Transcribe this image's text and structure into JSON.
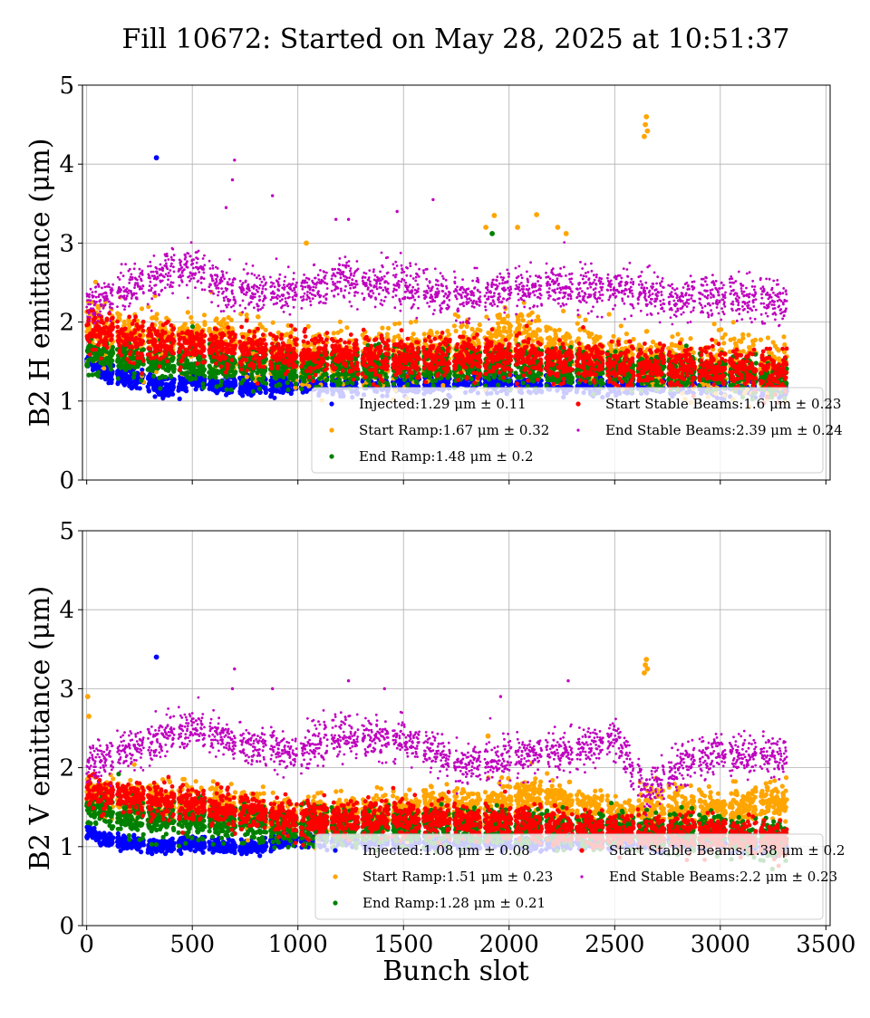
{
  "figure_title": "Fill 10672: Started on May 28, 2025 at 10:51:37",
  "xlabel": "Bunch slot",
  "chart_data": [
    {
      "type": "scatter",
      "title": "",
      "ylabel": "B2 H emittance (μm)",
      "xlim": [
        -20,
        3520
      ],
      "ylim": [
        0,
        5
      ],
      "xticks": [
        0,
        500,
        1000,
        1500,
        2000,
        2500,
        3000,
        3500
      ],
      "yticks": [
        0,
        1,
        2,
        3,
        4,
        5
      ],
      "grid": true,
      "legend_position": "lower-right",
      "series": [
        {
          "name": "Injected",
          "legend": "Injected:1.29 μm ± 0.11",
          "color": "#0000ff",
          "mean": 1.29,
          "std": 0.11,
          "marker_size": 2.6,
          "trend": [
            [
              0,
              1.55
            ],
            [
              80,
              1.35
            ],
            [
              300,
              1.25
            ],
            [
              360,
              1.15
            ],
            [
              500,
              1.28
            ],
            [
              700,
              1.18
            ],
            [
              1000,
              1.22
            ],
            [
              1500,
              1.2
            ],
            [
              2000,
              1.22
            ],
            [
              2500,
              1.2
            ],
            [
              3000,
              1.2
            ],
            [
              3230,
              1.15
            ]
          ],
          "outliers": [
            [
              330,
              4.08
            ]
          ]
        },
        {
          "name": "Start Ramp",
          "legend": "Start Ramp:1.67 μm ± 0.32",
          "color": "#ffa500",
          "mean": 1.67,
          "std": 0.32,
          "marker_size": 2.6,
          "trend": [
            [
              0,
              1.9
            ],
            [
              300,
              1.75
            ],
            [
              600,
              1.75
            ],
            [
              1000,
              1.55
            ],
            [
              1500,
              1.55
            ],
            [
              1900,
              1.7
            ],
            [
              2050,
              1.85
            ],
            [
              2200,
              1.7
            ],
            [
              2500,
              1.5
            ],
            [
              3000,
              1.45
            ],
            [
              3230,
              1.4
            ]
          ],
          "outliers": [
            [
              1040,
              3.0
            ],
            [
              1890,
              3.2
            ],
            [
              1930,
              3.35
            ],
            [
              2040,
              3.2
            ],
            [
              2130,
              3.36
            ],
            [
              2230,
              3.2
            ],
            [
              2270,
              3.12
            ],
            [
              2640,
              4.35
            ],
            [
              2645,
              4.5
            ],
            [
              2650,
              4.6
            ],
            [
              2655,
              4.42
            ]
          ]
        },
        {
          "name": "End Ramp",
          "legend": "End Ramp:1.48 μm ± 0.2",
          "color": "#008000",
          "mean": 1.48,
          "std": 0.2,
          "marker_size": 2.6,
          "trend": [
            [
              0,
              1.6
            ],
            [
              300,
              1.5
            ],
            [
              1000,
              1.4
            ],
            [
              1500,
              1.45
            ],
            [
              2000,
              1.45
            ],
            [
              2500,
              1.4
            ],
            [
              3000,
              1.35
            ],
            [
              3230,
              1.25
            ]
          ],
          "outliers": [
            [
              1920,
              3.12
            ]
          ]
        },
        {
          "name": "Start Stable Beams",
          "legend": "Start Stable Beams:1.6 μm ± 0.23",
          "color": "#ff0000",
          "mean": 1.6,
          "std": 0.23,
          "marker_size": 2.4,
          "trend": [
            [
              0,
              1.9
            ],
            [
              300,
              1.75
            ],
            [
              600,
              1.7
            ],
            [
              1000,
              1.6
            ],
            [
              1500,
              1.55
            ],
            [
              2000,
              1.55
            ],
            [
              2500,
              1.45
            ],
            [
              3000,
              1.45
            ],
            [
              3230,
              1.35
            ]
          ],
          "outliers": []
        },
        {
          "name": "End Stable Beams",
          "legend": "End Stable Beams:2.39 μm ± 0.24",
          "color": "#bf00bf",
          "mean": 2.39,
          "std": 0.24,
          "marker_size": 1.4,
          "trend": [
            [
              0,
              2.2
            ],
            [
              300,
              2.55
            ],
            [
              500,
              2.7
            ],
            [
              700,
              2.4
            ],
            [
              1000,
              2.35
            ],
            [
              1200,
              2.55
            ],
            [
              1500,
              2.45
            ],
            [
              1800,
              2.3
            ],
            [
              2000,
              2.4
            ],
            [
              2300,
              2.45
            ],
            [
              2600,
              2.4
            ],
            [
              2800,
              2.25
            ],
            [
              3000,
              2.35
            ],
            [
              3230,
              2.25
            ]
          ],
          "outliers": [
            [
              700,
              4.05
            ],
            [
              690,
              3.8
            ],
            [
              660,
              3.45
            ],
            [
              880,
              3.6
            ],
            [
              1640,
              3.55
            ],
            [
              1470,
              3.4
            ],
            [
              1180,
              3.3
            ],
            [
              1240,
              3.3
            ]
          ]
        }
      ]
    },
    {
      "type": "scatter",
      "title": "",
      "ylabel": "B2 V emittance (μm)",
      "xlim": [
        -20,
        3520
      ],
      "ylim": [
        0,
        5
      ],
      "xticks": [
        0,
        500,
        1000,
        1500,
        2000,
        2500,
        3000,
        3500
      ],
      "yticks": [
        0,
        1,
        2,
        3,
        4,
        5
      ],
      "grid": true,
      "legend_position": "lower-right",
      "series": [
        {
          "name": "Injected",
          "legend": "Injected:1.08 μm ± 0.08",
          "color": "#0000ff",
          "mean": 1.08,
          "std": 0.08,
          "marker_size": 2.6,
          "trend": [
            [
              0,
              1.2
            ],
            [
              100,
              1.08
            ],
            [
              350,
              1.0
            ],
            [
              500,
              1.05
            ],
            [
              750,
              0.98
            ],
            [
              1000,
              1.1
            ],
            [
              1500,
              1.05
            ],
            [
              2000,
              1.05
            ],
            [
              2500,
              1.05
            ],
            [
              3000,
              1.05
            ],
            [
              3230,
              1.0
            ]
          ],
          "outliers": [
            [
              330,
              3.4
            ]
          ]
        },
        {
          "name": "Start Ramp",
          "legend": "Start Ramp:1.51 μm ± 0.23",
          "color": "#ffa500",
          "mean": 1.51,
          "std": 0.23,
          "marker_size": 2.6,
          "trend": [
            [
              0,
              1.7
            ],
            [
              300,
              1.55
            ],
            [
              600,
              1.55
            ],
            [
              1000,
              1.35
            ],
            [
              1500,
              1.45
            ],
            [
              2000,
              1.55
            ],
            [
              2100,
              1.65
            ],
            [
              2500,
              1.4
            ],
            [
              2800,
              1.5
            ],
            [
              3000,
              1.45
            ],
            [
              3230,
              1.55
            ]
          ],
          "outliers": [
            [
              5,
              2.9
            ],
            [
              10,
              2.65
            ],
            [
              1900,
              2.4
            ],
            [
              2640,
              3.2
            ],
            [
              2645,
              3.3
            ],
            [
              2650,
              3.37
            ],
            [
              2655,
              3.25
            ]
          ]
        },
        {
          "name": "End Ramp",
          "legend": "End Ramp:1.28 μm ± 0.21",
          "color": "#008000",
          "mean": 1.28,
          "std": 0.21,
          "marker_size": 2.6,
          "trend": [
            [
              0,
              1.5
            ],
            [
              300,
              1.35
            ],
            [
              1000,
              1.25
            ],
            [
              1500,
              1.25
            ],
            [
              2000,
              1.25
            ],
            [
              2500,
              1.2
            ],
            [
              3000,
              1.15
            ],
            [
              3230,
              1.1
            ]
          ],
          "outliers": []
        },
        {
          "name": "Start Stable Beams",
          "legend": "Start Stable Beams:1.38 μm ± 0.2",
          "color": "#ff0000",
          "mean": 1.38,
          "std": 0.2,
          "marker_size": 2.4,
          "trend": [
            [
              0,
              1.7
            ],
            [
              300,
              1.6
            ],
            [
              600,
              1.5
            ],
            [
              1000,
              1.35
            ],
            [
              1500,
              1.35
            ],
            [
              2000,
              1.3
            ],
            [
              2500,
              1.2
            ],
            [
              3000,
              1.15
            ],
            [
              3230,
              1.1
            ]
          ],
          "outliers": []
        },
        {
          "name": "End Stable Beams",
          "legend": "End Stable Beams:2.2 μm ± 0.23",
          "color": "#bf00bf",
          "mean": 2.2,
          "std": 0.23,
          "marker_size": 1.4,
          "trend": [
            [
              0,
              2.0
            ],
            [
              300,
              2.35
            ],
            [
              500,
              2.5
            ],
            [
              700,
              2.3
            ],
            [
              1000,
              2.2
            ],
            [
              1200,
              2.4
            ],
            [
              1500,
              2.35
            ],
            [
              1800,
              2.0
            ],
            [
              2000,
              2.15
            ],
            [
              2300,
              2.2
            ],
            [
              2500,
              2.35
            ],
            [
              2650,
              1.7
            ],
            [
              2800,
              2.0
            ],
            [
              3000,
              2.2
            ],
            [
              3230,
              2.15
            ]
          ],
          "outliers": [
            [
              700,
              3.25
            ],
            [
              690,
              3.0
            ],
            [
              880,
              3.0
            ],
            [
              1240,
              3.1
            ],
            [
              1410,
              3.0
            ],
            [
              2280,
              3.1
            ],
            [
              1960,
              2.9
            ]
          ]
        }
      ]
    }
  ]
}
